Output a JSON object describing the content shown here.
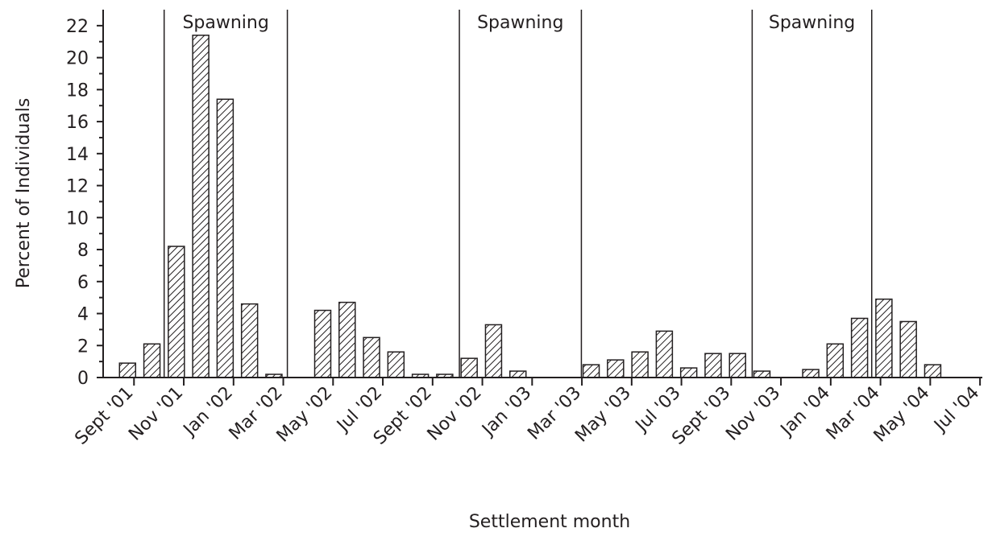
{
  "chart_data": {
    "type": "bar",
    "x_label": "Settlement month",
    "y_label": "Percent of Individuals",
    "categories": [
      "Sept '01",
      null,
      "Nov '01",
      null,
      "Jan '02",
      null,
      "Mar '02",
      null,
      "May '02",
      null,
      "Jul '02",
      null,
      "Sept '02",
      null,
      "Nov '02",
      null,
      "Jan '03",
      null,
      "Mar '03",
      null,
      "May '03",
      null,
      "Jul '03",
      null,
      "Sept '03",
      null,
      "Nov '03",
      null,
      "Jan '04",
      null,
      "Mar '04",
      null,
      "May '04",
      null,
      "Jul '04"
    ],
    "values": [
      0.9,
      2.1,
      8.2,
      21.4,
      17.4,
      4.6,
      0.2,
      0,
      4.2,
      4.7,
      2.5,
      1.6,
      0.2,
      0.2,
      1.2,
      3.3,
      0.4,
      0,
      0,
      0.8,
      1.1,
      1.6,
      2.9,
      0.6,
      1.5,
      1.5,
      0.4,
      0,
      0.5,
      2.1,
      3.7,
      4.9,
      3.5,
      0.8,
      0
    ],
    "color": "#231f20",
    "ylim": [
      0,
      23
    ],
    "yticks": [
      0,
      2,
      4,
      6,
      8,
      10,
      12,
      14,
      16,
      18,
      20,
      22
    ],
    "annotations": [
      "Spawning",
      "Spawning",
      "Spawning"
    ]
  }
}
